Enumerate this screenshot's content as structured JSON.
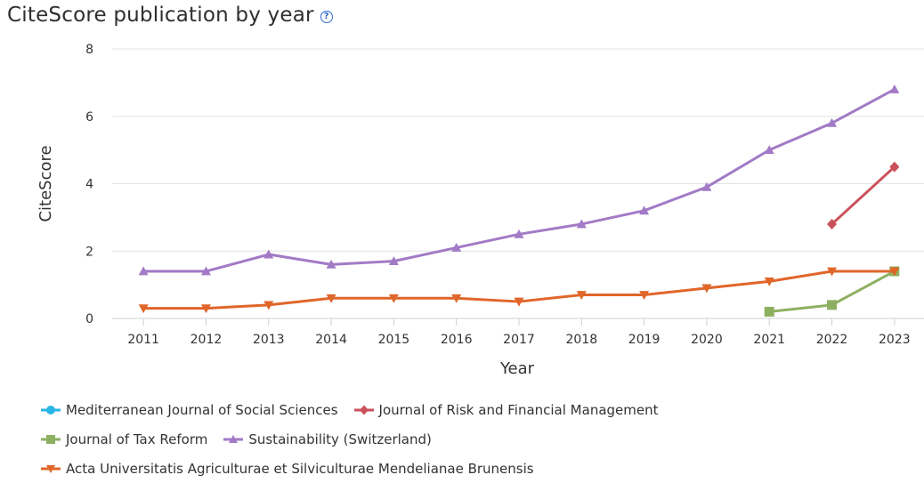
{
  "chart_data": {
    "type": "line",
    "title": "CiteScore publication by year",
    "xlabel": "Year",
    "ylabel": "CiteScore",
    "categories": [
      "2011",
      "2012",
      "2013",
      "2014",
      "2015",
      "2016",
      "2017",
      "2018",
      "2019",
      "2020",
      "2021",
      "2022",
      "2023"
    ],
    "ylim": [
      0,
      8
    ],
    "yticks": [
      "0",
      "2",
      "4",
      "6",
      "8"
    ],
    "grid": true,
    "legend_position": "bottom",
    "series": [
      {
        "name": "Mediterranean Journal of Social Sciences",
        "color": "#29b6e6",
        "marker": "circle",
        "values": [
          null,
          null,
          null,
          null,
          null,
          null,
          null,
          null,
          null,
          null,
          null,
          null,
          null
        ]
      },
      {
        "name": "Journal of Risk and Financial Management",
        "color": "#c9505a",
        "marker": "diamond",
        "values": [
          null,
          null,
          null,
          null,
          null,
          null,
          null,
          null,
          null,
          null,
          null,
          2.8,
          4.5
        ]
      },
      {
        "name": "Journal of Tax Reform",
        "color": "#8db060",
        "marker": "square",
        "values": [
          null,
          null,
          null,
          null,
          null,
          null,
          null,
          null,
          null,
          null,
          0.2,
          0.4,
          1.4
        ]
      },
      {
        "name": "Sustainability (Switzerland)",
        "color": "#a27ac6",
        "marker": "triangle-up",
        "values": [
          1.4,
          1.4,
          1.9,
          1.6,
          1.7,
          2.1,
          2.5,
          2.8,
          3.2,
          3.9,
          5.0,
          5.8,
          6.8
        ]
      },
      {
        "name": "Acta Universitatis Agriculturae et Silviculturae Mendelianae Brunensis",
        "color": "#e0662a",
        "marker": "triangle-down",
        "values": [
          0.3,
          0.3,
          0.4,
          0.6,
          0.6,
          0.6,
          0.5,
          0.7,
          0.7,
          0.9,
          1.1,
          1.4,
          1.4
        ]
      }
    ]
  },
  "help_icon_glyph": "?",
  "legend_rows": [
    [
      0,
      1
    ],
    [
      2,
      3
    ],
    [
      4
    ]
  ]
}
